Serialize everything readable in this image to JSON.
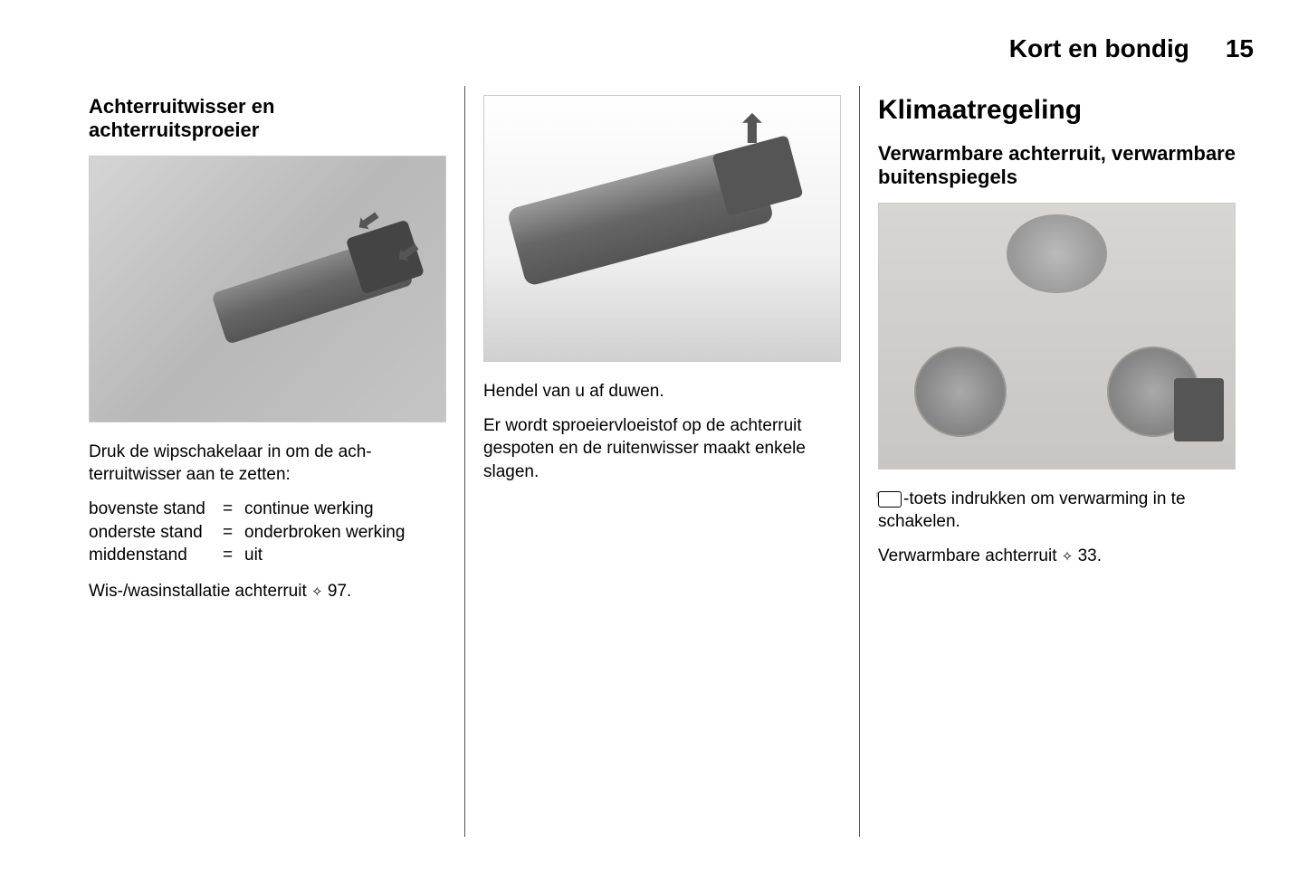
{
  "header": {
    "chapter": "Kort en bondig",
    "page": "15"
  },
  "col1": {
    "title": "Achterruitwisser en achterruitsproeier",
    "intro": "Druk de wipschakelaar in om de ach­terruitwisser aan te zetten:",
    "rows": [
      {
        "label": "bovenste stand",
        "value": "continue werking"
      },
      {
        "label": "onderste stand",
        "value": "onderbroken werking"
      },
      {
        "label": "middenstand",
        "value": "uit"
      }
    ],
    "ref_prefix": "Wis-/wasinstallatie achterruit ",
    "ref_page": "97."
  },
  "col2": {
    "line1": "Hendel van u af duwen.",
    "line2": "Er wordt sproeiervloeistof op de ach­terruit gespoten en de ruitenwisser maakt enkele slagen."
  },
  "col3": {
    "main_title": "Klimaatregeling",
    "sub_title": "Verwarmbare achterruit, verwarmbare buitenspiegels",
    "body_suffix": "-toets indrukken om verwarming in te schakelen.",
    "ref_prefix": "Verwarmbare achterruit ",
    "ref_page": "33."
  },
  "eq": "="
}
